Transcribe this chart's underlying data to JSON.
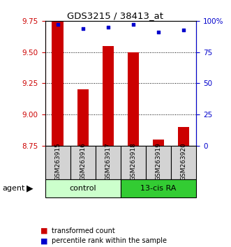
{
  "title": "GDS3215 / 38413_at",
  "samples": [
    "GSM263915",
    "GSM263916",
    "GSM263917",
    "GSM263918",
    "GSM263919",
    "GSM263920"
  ],
  "bar_values": [
    9.75,
    9.2,
    9.55,
    9.5,
    8.8,
    8.9
  ],
  "percentile_values": [
    97,
    94,
    95,
    97,
    91,
    93
  ],
  "ylim_left": [
    8.75,
    9.75
  ],
  "ylim_right": [
    0,
    100
  ],
  "yticks_left": [
    8.75,
    9.0,
    9.25,
    9.5,
    9.75
  ],
  "yticks_right": [
    0,
    25,
    50,
    75,
    100
  ],
  "bar_color": "#cc0000",
  "dot_color": "#0000cc",
  "group_labels": [
    "control",
    "13-cis RA"
  ],
  "group_colors": [
    "#ccffcc",
    "#33cc33"
  ],
  "agent_label": "agent",
  "legend_items": [
    "transformed count",
    "percentile rank within the sample"
  ],
  "legend_colors": [
    "#cc0000",
    "#0000cc"
  ],
  "bar_width": 0.45,
  "sample_label_fontsize": 6.5,
  "group_label_fontsize": 8,
  "tick_fontsize": 7.5
}
